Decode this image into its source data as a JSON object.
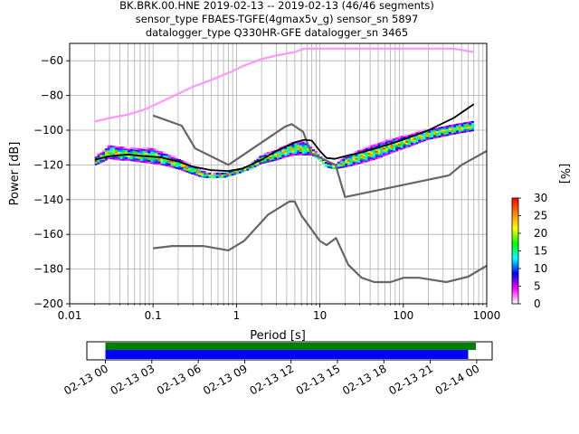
{
  "title_lines": [
    "BK.BRK.00.HNE   2019-02-13 -- 2019-02-13  (46/46 segments)",
    "sensor_type FBAES-TGFE(4gmax5v_g) sensor_sn 5897",
    "datalogger_type Q330HR-GFE datalogger_sn 3465"
  ],
  "chart_data": [
    {
      "type": "heatmap",
      "title": "BK.BRK.00.HNE   2019-02-13 -- 2019-02-13  (46/46 segments)",
      "xlabel": "Period [s]",
      "ylabel": "Power [dB]",
      "xscale": "log",
      "xlim": [
        0.01,
        1000
      ],
      "ylim": [
        -200,
        -50
      ],
      "x_ticks": [
        0.01,
        0.1,
        1,
        10,
        100,
        1000
      ],
      "x_tick_labels": [
        "0.01",
        "0.1",
        "1",
        "10",
        "100",
        "1000"
      ],
      "y_ticks": [
        -200,
        -180,
        -160,
        -140,
        -120,
        -100,
        -80,
        -60
      ],
      "y_tick_labels": [
        "−200",
        "−180",
        "−160",
        "−140",
        "−120",
        "−100",
        "−80",
        "−60"
      ],
      "grid": true,
      "colorbar": {
        "label": "[%]",
        "min": 0,
        "max": 30,
        "ticks": [
          0,
          5,
          10,
          15,
          20,
          25,
          30
        ],
        "tick_labels": [
          "0",
          "5",
          "10",
          "15",
          "20",
          "25",
          "30"
        ],
        "colors": [
          "#ffffff",
          "#ff00ff",
          "#0000ff",
          "#00ffff",
          "#00ff00",
          "#ffff00",
          "#ff8000",
          "#ff0000"
        ]
      },
      "series": [
        {
          "role": "nhnm",
          "color": "#666666",
          "x": [
            0.1,
            0.22,
            0.32,
            0.8,
            3.8,
            4.6,
            6.3,
            7.9,
            15.4,
            20,
            354.8
          ],
          "y": [
            -91.5,
            -97.4,
            -110.5,
            -120.0,
            -98.0,
            -96.5,
            -101.0,
            -113.5,
            -120.0,
            -138.5,
            -126.0
          ]
        },
        {
          "role": "nhnm-tail",
          "color": "#666666",
          "x": [
            354.8,
            500,
            1000
          ],
          "y": [
            -126.0,
            -120.0,
            -112.0
          ]
        },
        {
          "role": "nlnm",
          "color": "#666666",
          "x": [
            0.1,
            0.17,
            0.4,
            0.8,
            1.24,
            2.4,
            4.3,
            5.0,
            6.0,
            10.0,
            12.0,
            15.6,
            21.9,
            31.6,
            45.0,
            70.0,
            101.0,
            154.0,
            328.0,
            600.0,
            1000.0
          ],
          "y": [
            -168.0,
            -166.7,
            -166.7,
            -169.2,
            -163.7,
            -148.6,
            -141.1,
            -141.1,
            -149.0,
            -163.8,
            -166.2,
            -162.1,
            -177.5,
            -185.0,
            -187.5,
            -187.5,
            -185.0,
            -185.0,
            -187.5,
            -184.4,
            -178.0
          ]
        },
        {
          "role": "mode",
          "color": "#000000",
          "x": [
            0.02,
            0.03,
            0.05,
            0.08,
            0.12,
            0.2,
            0.3,
            0.5,
            0.8,
            1.2,
            2,
            3,
            5,
            6.5,
            8,
            10,
            12,
            15,
            20,
            30,
            50,
            80,
            120,
            200,
            400,
            700
          ],
          "y": [
            -117,
            -115,
            -114,
            -115,
            -115.5,
            -118,
            -121,
            -123,
            -123.5,
            -122,
            -117,
            -112,
            -107,
            -105.5,
            -106,
            -112,
            -116,
            -116.5,
            -115,
            -113,
            -110,
            -107,
            -104,
            -100,
            -93,
            -85
          ]
        },
        {
          "role": "psd-main",
          "x": [
            0.02,
            0.025,
            0.03,
            0.04,
            0.05,
            0.07,
            0.1,
            0.14,
            0.2,
            0.3,
            0.4,
            0.5,
            0.7,
            1,
            1.5,
            2,
            3,
            4,
            5,
            6.5,
            8,
            10,
            12,
            15,
            20,
            30,
            50,
            80,
            120,
            200,
            400,
            700
          ],
          "y_low": [
            -121,
            -119,
            -117,
            -118,
            -118,
            -119,
            -120,
            -121,
            -123,
            -126,
            -128,
            -128,
            -128,
            -126,
            -123,
            -120,
            -118,
            -116,
            -115,
            -115,
            -115,
            -118,
            -122,
            -123,
            -122,
            -120,
            -117,
            -113,
            -110,
            -106,
            -103,
            -101
          ],
          "y_high": [
            -115,
            -112,
            -108,
            -109,
            -110,
            -110,
            -110,
            -113,
            -116,
            -120,
            -123,
            -125,
            -124,
            -122,
            -119,
            -114,
            -111,
            -108,
            -106,
            -106,
            -110,
            -114,
            -118,
            -120,
            -115,
            -111,
            -107,
            -104,
            -102,
            -99,
            -96,
            -94
          ]
        },
        {
          "role": "psd-outlier",
          "x": [
            0.02,
            0.03,
            0.05,
            0.08,
            0.12,
            0.2,
            0.3,
            0.5,
            0.8,
            1.2,
            2,
            3,
            5,
            6.5,
            7,
            10,
            20,
            50,
            100,
            200,
            400,
            700
          ],
          "y": [
            -95,
            -93,
            -91,
            -88,
            -84,
            -79,
            -75,
            -71,
            -67,
            -63,
            -59,
            -57,
            -55,
            -53,
            -53,
            -53,
            -53,
            -53,
            -53,
            -53,
            -53,
            -55
          ]
        }
      ]
    },
    {
      "type": "timeline",
      "x_tick_labels": [
        "02-13 00",
        "02-13 03",
        "02-13 06",
        "02-13 09",
        "02-13 12",
        "02-13 15",
        "02-13 18",
        "02-13 21",
        "02-14 00"
      ],
      "x_ticks_hours": [
        0,
        3,
        6,
        9,
        12,
        15,
        18,
        21,
        24
      ],
      "xlim_hours": [
        -1.2,
        25
      ],
      "bars": [
        {
          "role": "data-coverage",
          "color": "#008000",
          "start_hours": 0.0,
          "end_hours": 23.95
        },
        {
          "role": "psd-coverage",
          "color": "#0000ff",
          "start_hours": 0.0,
          "end_hours": 23.45
        }
      ]
    }
  ]
}
